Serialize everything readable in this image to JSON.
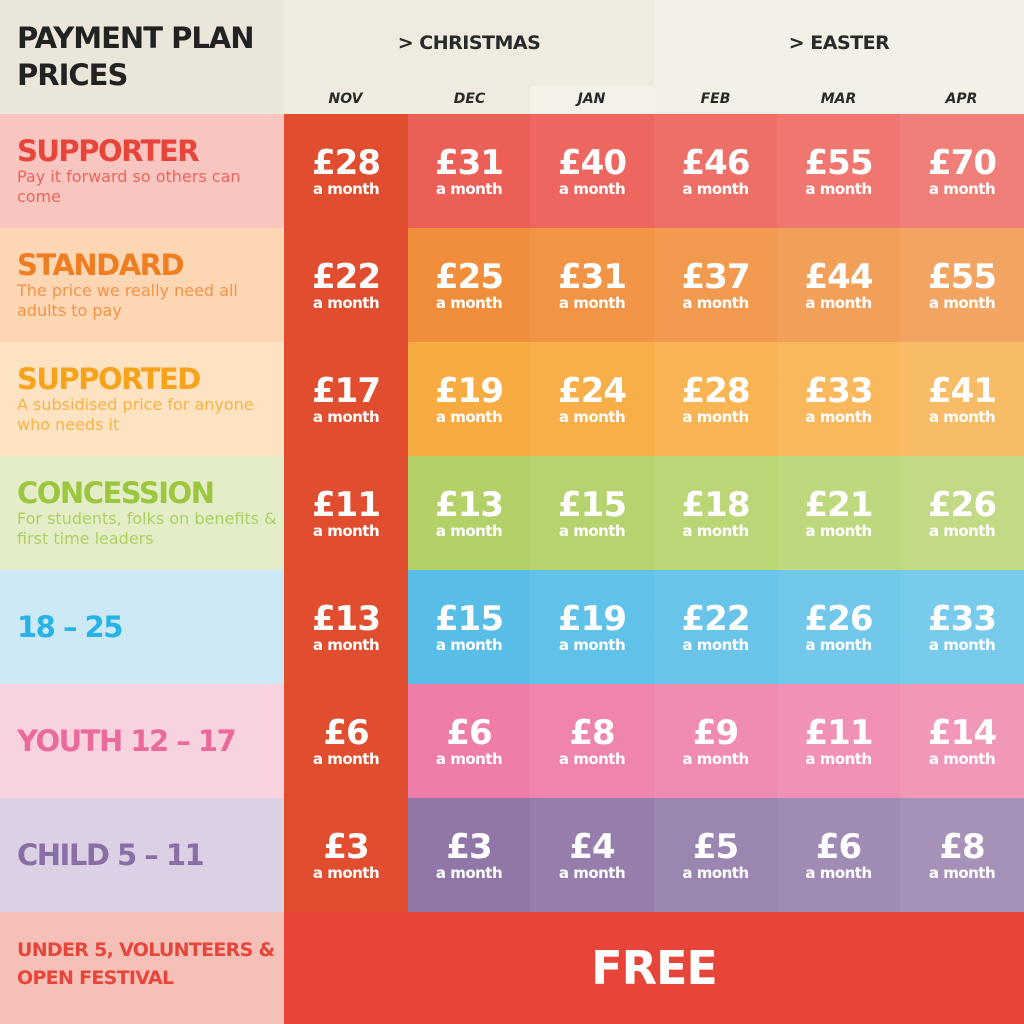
{
  "title": "PAYMENT PLAN PRICES",
  "periods": [
    "> CHRISTMAS",
    "> EASTER"
  ],
  "months": [
    "NOV",
    "DEC",
    "JAN",
    "FEB",
    "MAR",
    "APR"
  ],
  "unit": "a month",
  "nov_color": "#e04e2f",
  "tiers": [
    {
      "name": "SUPPORTER",
      "desc": "Pay it forward so others can come",
      "color": "#e8453a",
      "bg": "#f8c5c0",
      "cell": "#ec5f57",
      "prices": [
        "£28",
        "£31",
        "£40",
        "£46",
        "£55",
        "£70"
      ]
    },
    {
      "name": "STANDARD",
      "desc": "The price we really need all adults to pay",
      "color": "#ef7d22",
      "bg": "#fdd6b4",
      "cell": "#f08e3c",
      "prices": [
        "£22",
        "£25",
        "£31",
        "£37",
        "£44",
        "£55"
      ]
    },
    {
      "name": "SUPPORTED",
      "desc": "A subsidised price for anyone who needs it",
      "color": "#f7a21b",
      "bg": "#fde3c2",
      "cell": "#f8ab40",
      "prices": [
        "£17",
        "£19",
        "£24",
        "£28",
        "£33",
        "£41"
      ]
    },
    {
      "name": "CONCESSION",
      "desc": "For students, folks on benefits & first time leaders",
      "color": "#9dc63f",
      "bg": "#e3eec8",
      "cell": "#b3d168",
      "prices": [
        "£11",
        "£13",
        "£15",
        "£18",
        "£21",
        "£26"
      ]
    },
    {
      "name": "18 – 25",
      "desc": "",
      "color": "#27b3e6",
      "bg": "#cde9f6",
      "cell": "#58bee8",
      "prices": [
        "£13",
        "£15",
        "£19",
        "£22",
        "£26",
        "£33"
      ]
    },
    {
      "name": "YOUTH 12 – 17",
      "desc": "",
      "color": "#ea6a9c",
      "bg": "#f9d2e0",
      "cell": "#ee7ea8",
      "prices": [
        "£6",
        "£6",
        "£8",
        "£9",
        "£11",
        "£14"
      ]
    },
    {
      "name": "CHILD 5 – 11",
      "desc": "",
      "color": "#8a6ea6",
      "bg": "#dcd1e4",
      "cell": "#9077a8",
      "prices": [
        "£3",
        "£3",
        "£4",
        "£5",
        "£6",
        "£8"
      ]
    }
  ],
  "free_row": {
    "label": "UNDER 5, VOLUNTEERS & OPEN FESTIVAL",
    "value": "FREE"
  }
}
